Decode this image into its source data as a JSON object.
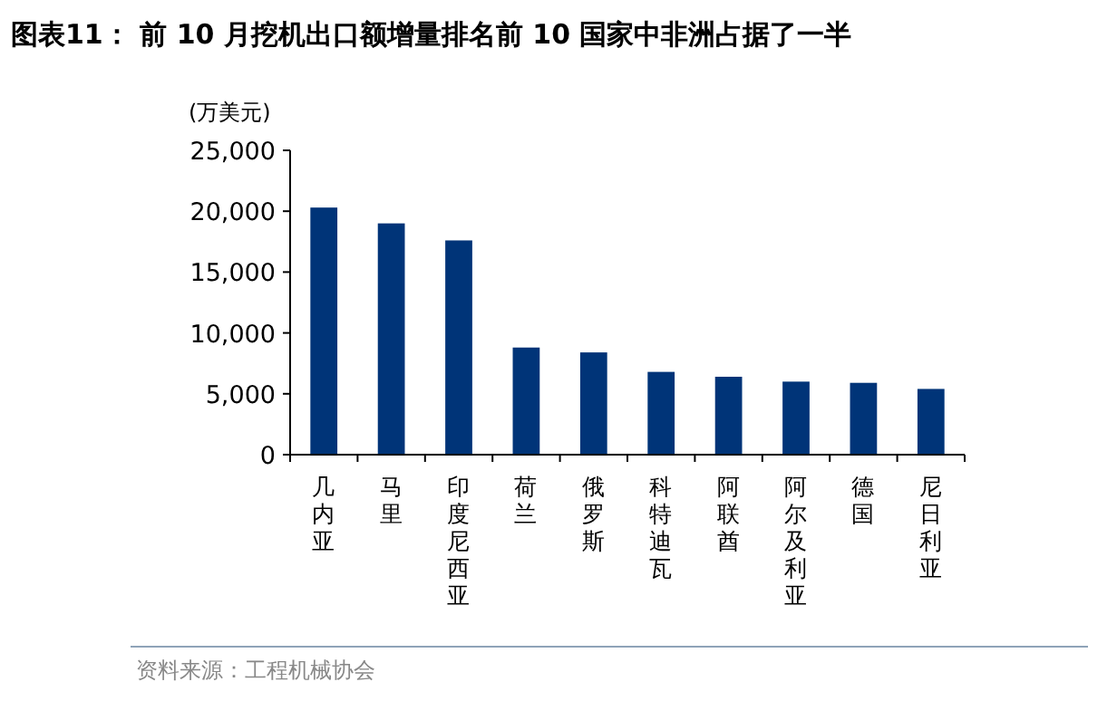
{
  "chart_data": {
    "type": "bar",
    "title": "图表11：  前 10 月挖机出口额增量排名前 10 国家中非洲占据了一半",
    "ylabel": "(万美元)",
    "categories": [
      "几内亚",
      "马里",
      "印度尼西亚",
      "荷兰",
      "俄罗斯",
      "科特迪瓦",
      "阿联酋",
      "阿尔及利亚",
      "德国",
      "尼日利亚"
    ],
    "values": [
      20300,
      19000,
      17600,
      8800,
      8400,
      6800,
      6400,
      6000,
      5900,
      5400
    ],
    "color": "#003478",
    "ylim": [
      0,
      25000
    ],
    "yticks": [
      {
        "value": 0,
        "label": "0"
      },
      {
        "value": 5000,
        "label": "5,000"
      },
      {
        "value": 10000,
        "label": "10,000"
      },
      {
        "value": 15000,
        "label": "15,000"
      },
      {
        "value": 20000,
        "label": "20,000"
      },
      {
        "value": 25000,
        "label": "25,000"
      }
    ],
    "grid": false,
    "annotations": [
      "资料来源：工程机械协会"
    ]
  }
}
